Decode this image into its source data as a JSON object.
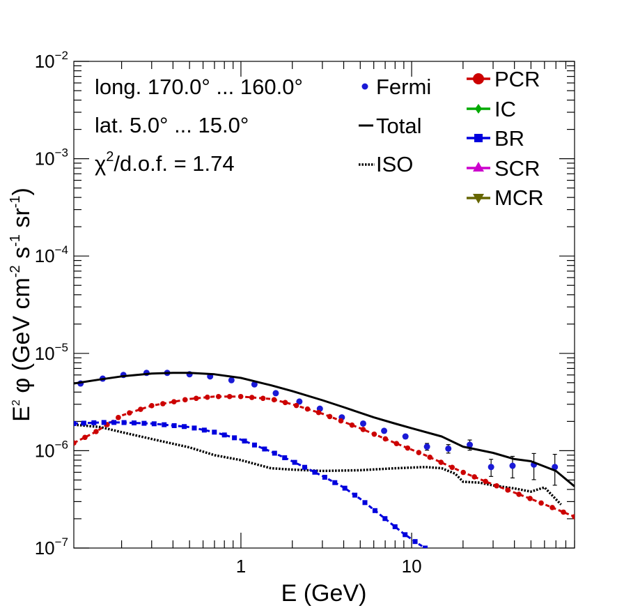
{
  "chart_data": {
    "type": "line",
    "scale": {
      "x": "log",
      "y": "log"
    },
    "xlim": [
      0.105,
      90
    ],
    "ylim": [
      1e-07,
      0.01
    ],
    "xlabel": "E (GeV)",
    "ylabel": {
      "base": "E",
      "exp1": "2",
      "phi": " φ (GeV cm",
      "exp2": "-2",
      "s": " s",
      "exp3": "-1",
      "sr": " sr",
      "exp4": "-1",
      "close": ")"
    },
    "x_tick_labels": [
      {
        "v": 1,
        "label": "1"
      },
      {
        "v": 10,
        "label": "10"
      }
    ],
    "y_tick_labels": [
      {
        "v": 1e-07,
        "base": "10",
        "exp": "−7"
      },
      {
        "v": 1e-06,
        "base": "10",
        "exp": "−6"
      },
      {
        "v": 1e-05,
        "base": "10",
        "exp": "−5"
      },
      {
        "v": 0.0001,
        "base": "10",
        "exp": "−4"
      },
      {
        "v": 0.001,
        "base": "10",
        "exp": "−3"
      },
      {
        "v": 0.01,
        "base": "10",
        "exp": "−2"
      }
    ],
    "annotations": {
      "longitude": "long. 170.0° ... 160.0°",
      "latitude": "lat. 5.0° ... 15.0°",
      "chi_symbol": "χ",
      "chi_exp": "2",
      "chi_rest": "/d.o.f. = 1.74"
    },
    "legend_left": [
      {
        "name": "Fermi",
        "style": "dot",
        "color": "#1a1ad6"
      },
      {
        "name": "Total",
        "style": "solid",
        "color": "#000000"
      },
      {
        "name": "ISO",
        "style": "dotted",
        "color": "#000000"
      }
    ],
    "legend_right": [
      {
        "name": "PCR",
        "marker": "circle",
        "color": "#cc0000"
      },
      {
        "name": "IC",
        "marker": "diamond",
        "color": "#00aa00"
      },
      {
        "name": "BR",
        "marker": "square",
        "color": "#0000dd"
      },
      {
        "name": "SCR",
        "marker": "triangle-up",
        "color": "#cc00cc"
      },
      {
        "name": "MCR",
        "marker": "triangle-down",
        "color": "#666600"
      }
    ],
    "series": [
      {
        "name": "Fermi",
        "type": "points",
        "color": "#1a1ad6",
        "x": [
          0.115,
          0.155,
          0.205,
          0.28,
          0.37,
          0.5,
          0.66,
          0.88,
          1.2,
          1.6,
          2.2,
          2.9,
          3.9,
          5.2,
          6.9,
          9.2,
          12.3,
          16.4,
          21.9,
          29.2,
          39.0,
          52.0,
          69.0
        ],
        "y": [
          4.9e-06,
          5.5e-06,
          6e-06,
          6.3e-06,
          6.3e-06,
          6.1e-06,
          5.8e-06,
          5.3e-06,
          4.8e-06,
          3.9e-06,
          3.2e-06,
          2.7e-06,
          2.2e-06,
          1.9e-06,
          1.6e-06,
          1.4e-06,
          1.1e-06,
          1.05e-06,
          1.15e-06,
          6.8e-07,
          7e-07,
          7.2e-07,
          6.8e-07
        ],
        "err_rel": [
          0.02,
          0.02,
          0.02,
          0.02,
          0.02,
          0.02,
          0.02,
          0.02,
          0.02,
          0.02,
          0.02,
          0.02,
          0.02,
          0.03,
          0.03,
          0.05,
          0.08,
          0.1,
          0.12,
          0.2,
          0.25,
          0.3,
          0.35
        ]
      },
      {
        "name": "Total",
        "type": "line",
        "color": "#000000",
        "x": [
          0.105,
          0.15,
          0.2,
          0.3,
          0.4,
          0.5,
          0.7,
          1.0,
          1.5,
          2,
          3,
          4,
          6,
          8,
          10,
          15,
          20,
          30,
          40,
          50,
          70,
          90
        ],
        "y": [
          4.9e-06,
          5.4e-06,
          5.8e-06,
          6.2e-06,
          6.3e-06,
          6.3e-06,
          6.1e-06,
          5.6e-06,
          4.7e-06,
          4.1e-06,
          3.3e-06,
          2.8e-06,
          2.2e-06,
          1.9e-06,
          1.7e-06,
          1.4e-06,
          1.1e-06,
          9.5e-07,
          8.2e-07,
          7.8e-07,
          6.2e-07,
          4.3e-07
        ]
      },
      {
        "name": "ISO",
        "type": "line",
        "style": "dotted",
        "color": "#000000",
        "x": [
          0.105,
          0.15,
          0.2,
          0.3,
          0.5,
          0.7,
          1.0,
          1.5,
          2,
          3,
          5,
          8,
          12,
          15,
          18,
          20,
          25,
          30,
          40,
          50,
          60,
          75
        ],
        "y": [
          1.85e-06,
          1.75e-06,
          1.55e-06,
          1.32e-06,
          1.08e-06,
          9e-07,
          8e-07,
          6.6e-07,
          6.4e-07,
          6.2e-07,
          6.3e-07,
          6.6e-07,
          6.8e-07,
          6.6e-07,
          5.8e-07,
          4.8e-07,
          4.7e-07,
          4.4e-07,
          4.1e-07,
          3.8e-07,
          4.2e-07,
          2.8e-07
        ]
      },
      {
        "name": "PCR",
        "type": "line-markers",
        "marker": "circle",
        "color": "#cc0000",
        "x": [
          0.105,
          0.14,
          0.2,
          0.3,
          0.5,
          0.7,
          1.0,
          1.5,
          2,
          3,
          5,
          8,
          12,
          20,
          30,
          50,
          90
        ],
        "y": [
          1.2e-06,
          1.55e-06,
          2.3e-06,
          2.9e-06,
          3.4e-06,
          3.6e-06,
          3.6e-06,
          3.4e-06,
          3e-06,
          2.4e-06,
          1.7e-06,
          1.2e-06,
          9e-07,
          6e-07,
          4.5e-07,
          3.2e-07,
          2.1e-07
        ]
      },
      {
        "name": "BR",
        "type": "line-markers",
        "marker": "square",
        "color": "#0000dd",
        "x": [
          0.105,
          0.15,
          0.2,
          0.3,
          0.5,
          0.7,
          1.0,
          1.5,
          2,
          3,
          4,
          5,
          7,
          9,
          11,
          12
        ],
        "y": [
          1.9e-06,
          1.95e-06,
          1.95e-06,
          1.9e-06,
          1.75e-06,
          1.55e-06,
          1.3e-06,
          9.8e-07,
          7.8e-07,
          5.5e-07,
          4.2e-07,
          3.2e-07,
          2e-07,
          1.4e-07,
          1.1e-07,
          1e-07
        ]
      }
    ]
  }
}
